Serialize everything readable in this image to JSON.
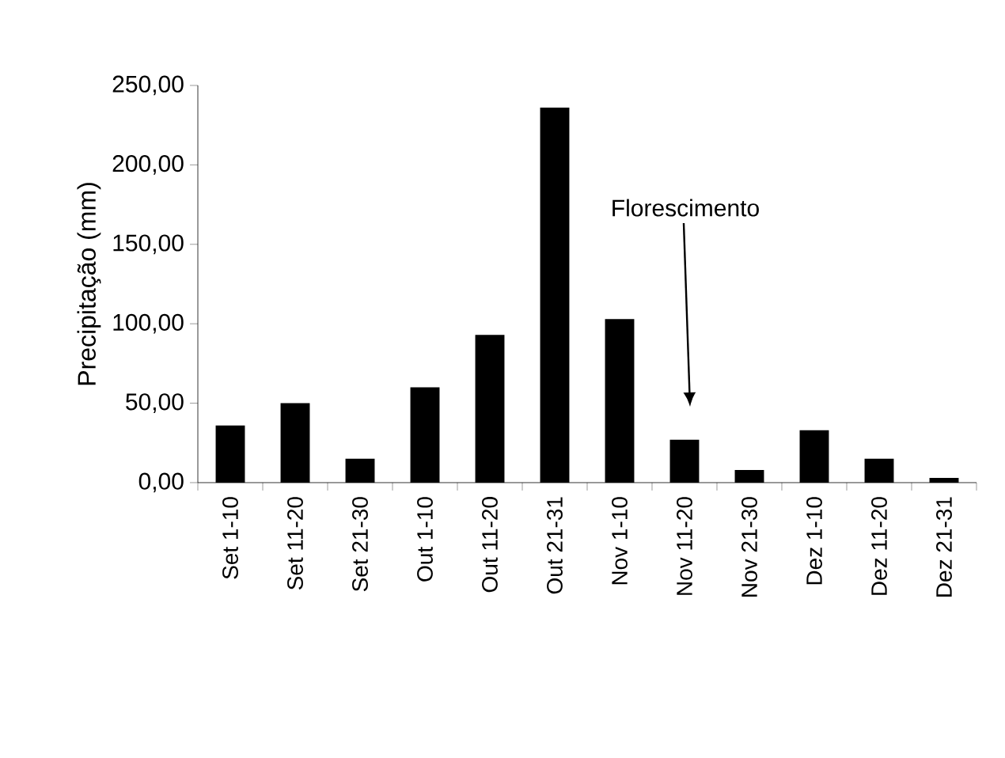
{
  "chart_data": {
    "type": "bar",
    "ylabel": "Precipitação (mm)",
    "categories": [
      "Set 1-10",
      "Set 11-20",
      "Set 21-30",
      "Out 1-10",
      "Out 11-20",
      "Out 21-31",
      "Nov 1-10",
      "Nov 11-20",
      "Nov 21-30",
      "Dez 1-10",
      "Dez 11-20",
      "Dez 21-31"
    ],
    "values": [
      36,
      50,
      15,
      60,
      93,
      236,
      103,
      27,
      8,
      33,
      15,
      3
    ],
    "color": "#000000",
    "ylim": [
      0,
      250
    ],
    "yticks": [
      {
        "value": 0,
        "label": "0,00"
      },
      {
        "value": 50,
        "label": "50,00"
      },
      {
        "value": 100,
        "label": "100,00"
      },
      {
        "value": 150,
        "label": "150,00"
      },
      {
        "value": 200,
        "label": "200,00"
      },
      {
        "value": 250,
        "label": "250,00"
      }
    ],
    "annotations": [
      "Florescimento"
    ]
  }
}
